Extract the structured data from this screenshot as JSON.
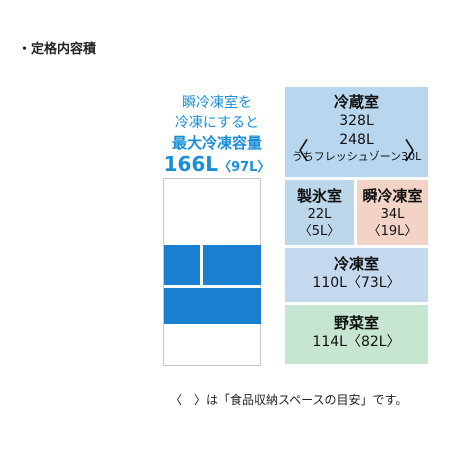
{
  "heading": "・定格内容積",
  "instant_freeze": {
    "line1": "瞬冷凍室を",
    "line2": "冷凍にすると",
    "line3": "最大冷凍容量",
    "value": "166L",
    "sub": "〈97L〉"
  },
  "compartments": {
    "refrigerator": {
      "title": "冷蔵室",
      "total": "328L",
      "fresh": "248L",
      "fresh_zone": "うちフレッシュゾーン30L",
      "bracket_left": "〈",
      "bracket_right": "〉"
    },
    "ice": {
      "title": "製氷室",
      "capacity": "22L",
      "food": "〈5L〉"
    },
    "instant": {
      "title": "瞬冷凍室",
      "capacity": "34L",
      "food": "〈19L〉"
    },
    "freezer": {
      "title": "冷凍室",
      "capacity": "110L〈73L〉"
    },
    "vegetable": {
      "title": "野菜室",
      "capacity": "114L〈82L〉"
    }
  },
  "note": "〈　〉は「食品収納スペースの目安」です。",
  "colors": {
    "accent": "#1a8fd8",
    "fridge_blue": "#1a7fd0",
    "refrigerator": "#b8d6ee",
    "ice": "#bcd7ea",
    "instant": "#f3d3c6",
    "freezer": "#c4d8ee",
    "vegetable": "#c6e6d2"
  }
}
